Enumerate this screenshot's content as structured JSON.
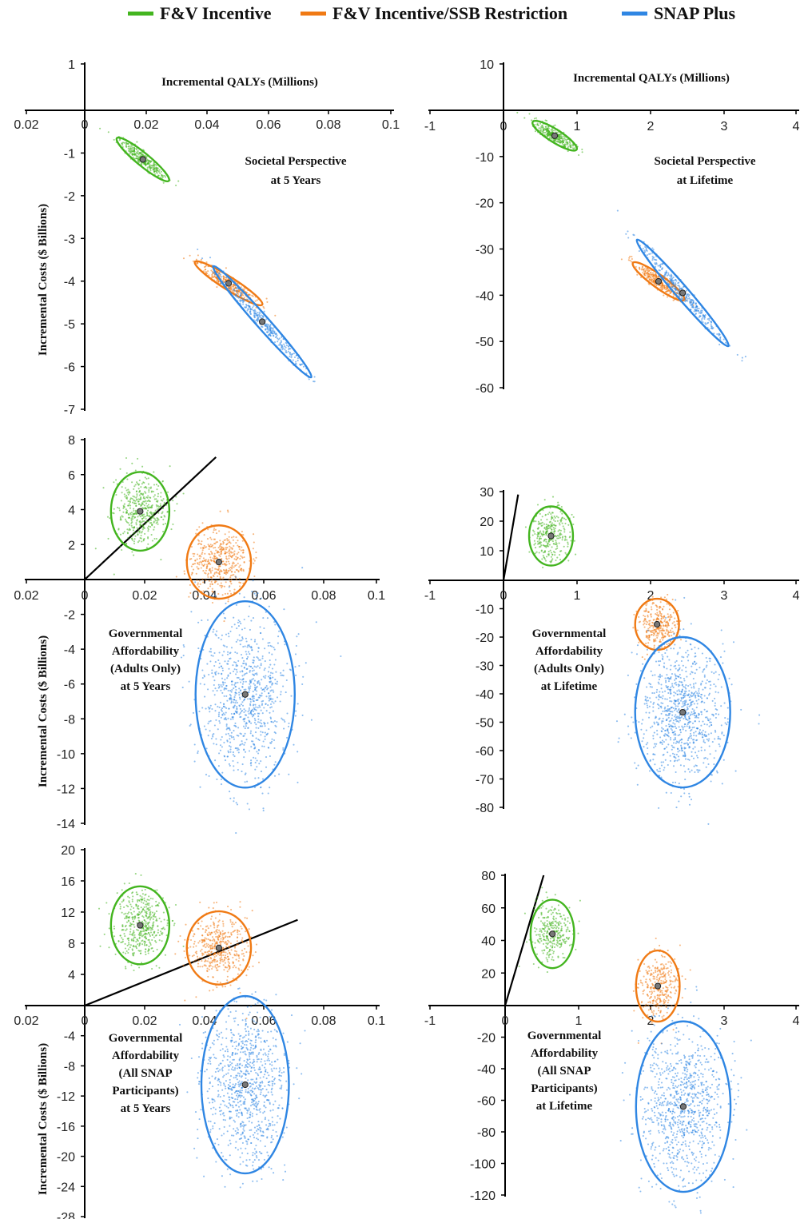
{
  "legend": [
    {
      "label": "F&V Incentive",
      "color": "#43b51f"
    },
    {
      "label": "F&V Incentive/SSB Restriction",
      "color": "#f07a14"
    },
    {
      "label": "SNAP Plus",
      "color": "#2f86e3"
    }
  ],
  "chart_data": [
    {
      "type": "scatter",
      "panel": "top-left",
      "title": "Incremental QALYs (Millions)",
      "annotation": [
        "Societal Perspective",
        "at 5 Years"
      ],
      "ylabel": "Incremental Costs ($ Billions)",
      "x_ticks": [
        "0.02",
        "0",
        "0.02",
        "0.04",
        "0.06",
        "0.08",
        "0.1"
      ],
      "y_ticks": [
        "1",
        "-1",
        "-2",
        "-3",
        "-4",
        "-5",
        "-6",
        "-7"
      ],
      "xlim": [
        -0.02,
        0.1
      ],
      "ylim": [
        -7,
        1
      ],
      "series": [
        {
          "name": "F&V Incentive",
          "mean": [
            0.019,
            -1.15
          ],
          "ellipse_points": [
            [
              0.011,
              -0.6
            ],
            [
              0.028,
              -1.6
            ],
            [
              0.012,
              -0.9
            ],
            [
              0.026,
              -1.3
            ]
          ]
        },
        {
          "name": "F&V Incentive/SSB Restriction",
          "mean": [
            0.047,
            -4.05
          ],
          "ellipse_points": [
            [
              0.036,
              -3.6
            ],
            [
              0.058,
              -4.6
            ],
            [
              0.04,
              -3.85
            ],
            [
              0.053,
              -4.35
            ]
          ]
        },
        {
          "name": "SNAP Plus",
          "mean": [
            0.058,
            -4.95
          ],
          "ellipse_points": [
            [
              0.04,
              -3.6
            ],
            [
              0.072,
              -6.2
            ],
            [
              0.043,
              -4.2
            ],
            [
              0.068,
              -5.6
            ]
          ]
        }
      ]
    },
    {
      "type": "scatter",
      "panel": "top-right",
      "title": "Incremental QALYs (Millions)",
      "annotation": [
        "Societal Perspective",
        "at Lifetime"
      ],
      "ylabel": "",
      "x_ticks": [
        "-1",
        "0",
        "1",
        "2",
        "3",
        "4"
      ],
      "y_ticks": [
        "10",
        "-10",
        "-20",
        "-30",
        "-40",
        "-50",
        "-60"
      ],
      "xlim": [
        -1,
        4
      ],
      "ylim": [
        -60,
        10
      ],
      "series": [
        {
          "name": "F&V Incentive",
          "mean": [
            0.7,
            -5.5
          ],
          "ellipse_points": [
            [
              0.35,
              -2.5
            ],
            [
              0.95,
              -8.5
            ],
            [
              0.45,
              -4.0
            ],
            [
              0.9,
              -7.0
            ]
          ]
        },
        {
          "name": "F&V Incentive/SSB Restriction",
          "mean": [
            2.12,
            -37.0
          ],
          "ellipse_points": [
            [
              1.8,
              -33.0
            ],
            [
              2.5,
              -41.0
            ],
            [
              1.9,
              -35.0
            ],
            [
              2.4,
              -39.0
            ]
          ]
        },
        {
          "name": "SNAP Plus",
          "mean": [
            2.45,
            -39.5
          ],
          "ellipse_points": [
            [
              1.8,
              -28.0
            ],
            [
              3.05,
              -51.0
            ],
            [
              2.0,
              -33.0
            ],
            [
              2.9,
              -46.0
            ]
          ]
        }
      ]
    },
    {
      "type": "scatter",
      "panel": "middle-left",
      "title": "",
      "annotation": [
        "Governmental",
        "Affordability",
        "(Adults Only)",
        "at 5 Years"
      ],
      "ylabel": "Incremental Costs ($ Billions)",
      "x_ticks": [
        "0.02",
        "0",
        "0.02",
        "0.04",
        "0.06",
        "0.08",
        "0.1"
      ],
      "y_ticks": [
        "8",
        "6",
        "4",
        "2",
        "-2",
        "-4",
        "-6",
        "-8",
        "-10",
        "-12",
        "-14"
      ],
      "xlim": [
        -0.02,
        0.1
      ],
      "ylim": [
        -14,
        8
      ],
      "threshold_line": [
        [
          0,
          0
        ],
        [
          0.045,
          7.0
        ]
      ],
      "series": [
        {
          "name": "F&V Incentive",
          "mean": [
            0.019,
            3.9
          ],
          "ellipse_points": [
            [
              0.009,
              1.7
            ],
            [
              0.029,
              6.2
            ]
          ]
        },
        {
          "name": "F&V Incentive/SSB Restriction",
          "mean": [
            0.046,
            1.0
          ],
          "ellipse_points": [
            [
              0.035,
              -1.2
            ],
            [
              0.057,
              3.0
            ]
          ]
        },
        {
          "name": "SNAP Plus",
          "mean": [
            0.055,
            -6.6
          ],
          "ellipse_points": [
            [
              0.038,
              -1.3
            ],
            [
              0.072,
              -12.0
            ]
          ]
        }
      ]
    },
    {
      "type": "scatter",
      "panel": "middle-right",
      "title": "",
      "annotation": [
        "Governmental",
        "Affordability",
        "(Adults Only)",
        "at Lifetime"
      ],
      "ylabel": "",
      "x_ticks": [
        "-1",
        "0",
        "1",
        "2",
        "3",
        "4"
      ],
      "y_ticks": [
        "30",
        "20",
        "10",
        "-10",
        "-20",
        "-30",
        "-40",
        "-50",
        "-60",
        "-70",
        "-80"
      ],
      "xlim": [
        -1,
        4
      ],
      "ylim": [
        -80,
        30
      ],
      "threshold_line": [
        [
          0,
          0
        ],
        [
          0.2,
          29.0
        ]
      ],
      "series": [
        {
          "name": "F&V Incentive",
          "mean": [
            0.65,
            15.0
          ],
          "ellipse_points": [
            [
              0.35,
              5.0
            ],
            [
              0.95,
              25.0
            ]
          ]
        },
        {
          "name": "F&V Incentive/SSB Restriction",
          "mean": [
            2.1,
            -15.5
          ],
          "ellipse_points": [
            [
              1.8,
              -24.0
            ],
            [
              2.4,
              -6.0
            ]
          ]
        },
        {
          "name": "SNAP Plus",
          "mean": [
            2.45,
            -46.5
          ],
          "ellipse_points": [
            [
              1.8,
              -20.0
            ],
            [
              3.1,
              -73.0
            ]
          ]
        }
      ]
    },
    {
      "type": "scatter",
      "panel": "bottom-left",
      "title": "",
      "annotation": [
        "Governmental",
        "Affordability",
        "(All SNAP",
        "Participants)",
        "at 5 Years"
      ],
      "ylabel": "Incremental Costs ($ Billions)",
      "x_ticks": [
        "0.02",
        "0",
        "0.02",
        "0.04",
        "0.06",
        "0.08",
        "0.1"
      ],
      "y_ticks": [
        "20",
        "16",
        "12",
        "8",
        "4",
        "-4",
        "-8",
        "-12",
        "-16",
        "-20",
        "-24",
        "-28"
      ],
      "xlim": [
        -0.02,
        0.1
      ],
      "ylim": [
        -28,
        20
      ],
      "threshold_line": [
        [
          0,
          0
        ],
        [
          0.073,
          11.0
        ]
      ],
      "series": [
        {
          "name": "F&V Incentive",
          "mean": [
            0.019,
            10.3
          ],
          "ellipse_points": [
            [
              0.009,
              5.5
            ],
            [
              0.029,
              15.5
            ]
          ]
        },
        {
          "name": "F&V Incentive/SSB Restriction",
          "mean": [
            0.046,
            7.4
          ],
          "ellipse_points": [
            [
              0.035,
              2.8
            ],
            [
              0.057,
              12.2
            ]
          ]
        },
        {
          "name": "SNAP Plus",
          "mean": [
            0.055,
            -10.5
          ],
          "ellipse_points": [
            [
              0.04,
              1.0
            ],
            [
              0.07,
              -22.5
            ]
          ]
        }
      ]
    },
    {
      "type": "scatter",
      "panel": "bottom-right",
      "title": "",
      "annotation": [
        "Governmental",
        "Affordability",
        "(All SNAP",
        "Participants)",
        "at Lifetime"
      ],
      "ylabel": "",
      "x_ticks": [
        "-1",
        "0",
        "1",
        "2",
        "3",
        "4"
      ],
      "y_ticks": [
        "80",
        "60",
        "40",
        "20",
        "-20",
        "-40",
        "-60",
        "-80",
        "-100",
        "-120"
      ],
      "xlim": [
        -1,
        4
      ],
      "ylim": [
        -120,
        80
      ],
      "threshold_line": [
        [
          0,
          0
        ],
        [
          0.53,
          80.0
        ]
      ],
      "series": [
        {
          "name": "F&V Incentive",
          "mean": [
            0.65,
            44.0
          ],
          "ellipse_points": [
            [
              0.35,
              23.0
            ],
            [
              0.95,
              65.0
            ]
          ]
        },
        {
          "name": "F&V Incentive/SSB Restriction",
          "mean": [
            2.1,
            12.0
          ],
          "ellipse_points": [
            [
              1.8,
              -10.0
            ],
            [
              2.4,
              34.0
            ]
          ]
        },
        {
          "name": "SNAP Plus",
          "mean": [
            2.45,
            -64.0
          ],
          "ellipse_points": [
            [
              1.8,
              -10.0
            ],
            [
              3.1,
              -118.0
            ]
          ]
        }
      ]
    }
  ]
}
